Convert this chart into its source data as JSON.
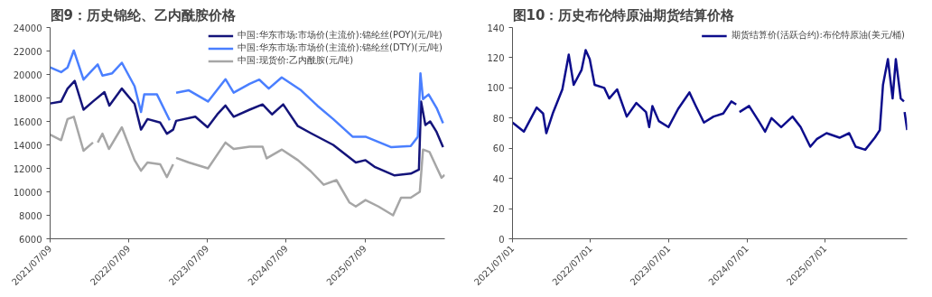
{
  "chart_data": [
    {
      "type": "line",
      "title": "图9：历史锦纶、乙内酰胺价格",
      "legend": "top right",
      "grid": false,
      "xlim": [
        "2021-07-09",
        "2026-07-15"
      ],
      "xticks": [
        {
          "value": "2021-07-09",
          "label": "2021/07/09"
        },
        {
          "value": "2022-07-09",
          "label": "2022/07/09"
        },
        {
          "value": "2023-07-09",
          "label": "2023/07/09"
        },
        {
          "value": "2024-07-09",
          "label": "2024/07/09"
        },
        {
          "value": "2025-07-09",
          "label": "2025/07/09"
        }
      ],
      "ylim": [
        6000,
        24000
      ],
      "yticks": [
        6000,
        8000,
        10000,
        12000,
        14000,
        16000,
        18000,
        20000,
        22000,
        24000
      ],
      "series": [
        {
          "name": "中国:华东市场:市场价(主流价):锦纶丝(POY)(元/吨)",
          "color": "#14147a",
          "x": [
            "2021-07-09",
            "2021-08-29",
            "2021-09-28",
            "2021-10-31",
            "2021-12-11",
            "2022-01-24",
            "2022-03-18",
            "2022-04-10",
            "2022-06-07",
            "2022-08-05",
            "2022-09-04",
            "2022-10-04",
            "2022-12-02",
            "2023-01-02",
            "2023-01-31",
            "2023-02-14",
            "2023-05-14",
            "2023-07-10",
            "2023-08-24",
            "2023-10-01",
            "2023-11-08",
            "2024-01-21",
            "2024-03-21",
            "2024-05-04",
            "2024-06-25",
            "2024-09-01",
            "2024-10-31",
            "2025-02-12",
            "2025-05-28",
            "2025-07-12",
            "2025-08-26",
            "2025-11-24",
            "2026-02-07",
            "2026-03-17",
            "2026-03-27",
            "2026-04-16",
            "2026-05-08",
            "2026-06-07",
            "2026-07-07"
          ],
          "values": [
            17530,
            17700,
            18800,
            19450,
            17000,
            17700,
            18500,
            17350,
            18800,
            17500,
            15300,
            16200,
            15900,
            14950,
            15300,
            16050,
            16400,
            15500,
            16600,
            17350,
            16400,
            17000,
            17450,
            16600,
            17450,
            15600,
            15000,
            14000,
            12500,
            12700,
            12100,
            11400,
            11550,
            11900,
            17700,
            15700,
            16000,
            15100,
            13800
          ]
        },
        {
          "name": "中国:华东市场:市场价(主流价):锦纶丝(DTY)(元/吨)",
          "color": "#4a7fff",
          "x": [
            "2021-07-09",
            "2021-08-29",
            "2021-09-28",
            "2021-10-27",
            "2021-12-11",
            "2022-01-17",
            "2022-02-15",
            "2022-03-09",
            "2022-04-23",
            "2022-06-07",
            "2022-08-05",
            "2022-09-04",
            "2022-09-19",
            "2022-11-17",
            "2023-01-15",
            "2023-02-01",
            "2023-02-14",
            "2023-04-14",
            "2023-07-12",
            "2023-10-01",
            "2023-11-08",
            "2024-01-21",
            "2024-03-06",
            "2024-04-19",
            "2024-06-18",
            "2024-09-16",
            "2024-11-30",
            "2025-02-12",
            "2025-05-13",
            "2025-07-12",
            "2025-11-09",
            "2026-02-07",
            "2026-03-12",
            "2026-03-24",
            "2026-04-05",
            "2026-05-01",
            "2026-06-07",
            "2026-07-07"
          ],
          "values": [
            20600,
            20200,
            20600,
            22040,
            19560,
            20300,
            20850,
            19900,
            20100,
            21000,
            19000,
            16800,
            18300,
            18300,
            16100,
            null,
            18450,
            18650,
            17700,
            19600,
            18450,
            19200,
            19560,
            18800,
            19750,
            18650,
            17350,
            16200,
            14700,
            14700,
            13800,
            13900,
            14700,
            20100,
            17900,
            18300,
            17150,
            15850
          ]
        },
        {
          "name": "中国:现货价:乙内酰胺(元/吨)",
          "color": "#a6a6a6",
          "x": [
            "2021-07-09",
            "2021-08-29",
            "2021-09-28",
            "2021-10-27",
            "2021-12-11",
            "2022-01-24",
            "2022-02-01",
            "2022-02-15",
            "2022-03-09",
            "2022-04-08",
            "2022-06-07",
            "2022-08-05",
            "2022-09-04",
            "2022-10-04",
            "2022-12-02",
            "2023-01-02",
            "2023-01-31",
            "2023-02-07",
            "2023-02-14",
            "2023-04-14",
            "2023-07-12",
            "2023-10-01",
            "2023-11-08",
            "2024-01-21",
            "2024-03-21",
            "2024-04-09",
            "2024-06-19",
            "2024-09-01",
            "2024-10-31",
            "2024-12-30",
            "2025-02-27",
            "2025-04-28",
            "2025-05-28",
            "2025-07-12",
            "2025-09-10",
            "2025-11-17",
            "2025-12-24",
            "2026-02-07",
            "2026-03-21",
            "2026-04-05",
            "2026-05-05",
            "2026-06-07",
            "2026-06-30",
            "2026-07-15"
          ],
          "values": [
            14870,
            14400,
            16200,
            16400,
            13500,
            14200,
            null,
            14200,
            14950,
            13650,
            15500,
            12700,
            11800,
            12500,
            12350,
            11250,
            12350,
            null,
            12900,
            12500,
            12000,
            14200,
            13650,
            13850,
            13850,
            12850,
            13600,
            12700,
            11750,
            10600,
            11000,
            9100,
            8750,
            9300,
            8750,
            8000,
            9500,
            9500,
            10000,
            13600,
            13400,
            12100,
            11200,
            11450
          ]
        }
      ]
    },
    {
      "type": "line",
      "title": "图10：历史布伦特原油期货结算价格",
      "legend": "top right",
      "grid": false,
      "xlim": [
        "2021-07-01",
        "2026-07-20"
      ],
      "xticks": [
        {
          "value": "2021-07-01",
          "label": "2021/07/01"
        },
        {
          "value": "2022-07-01",
          "label": "2022/07/01"
        },
        {
          "value": "2023-07-01",
          "label": "2023/07/01"
        },
        {
          "value": "2024-07-01",
          "label": "2024/07/01"
        },
        {
          "value": "2025-07-01",
          "label": "2025/07/01"
        }
      ],
      "ylim": [
        0,
        140
      ],
      "yticks": [
        0,
        20,
        40,
        60,
        80,
        100,
        120,
        140
      ],
      "series": [
        {
          "name": "期货结算价(活跃合约):布伦特原油(美元/桶)",
          "color": "#0d0d8c",
          "x": [
            "2021-07-01",
            "2021-08-23",
            "2021-10-22",
            "2021-11-21",
            "2021-12-06",
            "2022-01-05",
            "2022-02-19",
            "2022-03-21",
            "2022-04-13",
            "2022-05-20",
            "2022-06-08",
            "2022-06-27",
            "2022-07-20",
            "2022-09-03",
            "2022-09-26",
            "2022-11-02",
            "2022-12-17",
            "2023-01-31",
            "2023-03-17",
            "2023-04-01",
            "2023-04-16",
            "2023-05-16",
            "2023-06-30",
            "2023-08-14",
            "2023-10-06",
            "2023-11-05",
            "2023-12-13",
            "2024-01-27",
            "2024-03-12",
            "2024-04-19",
            "2024-05-12",
            "2024-05-20",
            "2024-05-27",
            "2024-07-11",
            "2024-08-25",
            "2024-09-24",
            "2024-10-24",
            "2024-12-08",
            "2025-01-30",
            "2025-03-09",
            "2025-04-23",
            "2025-05-23",
            "2025-07-08",
            "2025-09-07",
            "2025-10-22",
            "2025-11-21",
            "2026-01-05",
            "2026-02-19",
            "2026-03-14",
            "2026-03-29",
            "2026-04-21",
            "2026-05-13",
            "2026-05-28",
            "2026-06-20",
            "2026-07-05",
            "2026-07-06",
            "2026-07-08",
            "2026-07-20"
          ],
          "values": [
            77,
            71,
            87,
            83,
            70,
            83,
            99,
            122,
            102,
            112,
            125,
            119,
            102,
            100,
            93,
            99,
            81,
            90,
            84,
            74,
            88,
            78,
            74,
            86,
            97,
            88,
            77,
            81,
            83,
            91,
            89,
            null,
            84,
            88,
            78,
            71,
            80,
            74,
            81,
            74,
            61,
            66,
            70,
            67,
            70,
            61,
            59,
            67,
            72,
            102,
            119,
            93,
            119,
            93,
            91,
            null,
            84,
            72
          ]
        }
      ]
    }
  ]
}
